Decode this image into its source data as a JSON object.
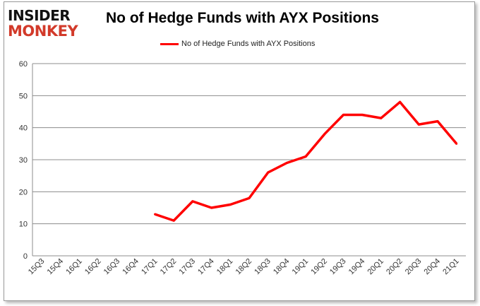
{
  "logo": {
    "line1": "INSIDER",
    "line2": "MONKEY"
  },
  "chart_data": {
    "type": "line",
    "title": "No of Hedge Funds with AYX Positions",
    "xlabel": "",
    "ylabel": "",
    "ylim": [
      0,
      60
    ],
    "yticks": [
      0,
      10,
      20,
      30,
      40,
      50,
      60
    ],
    "grid": true,
    "legend_position": "top",
    "categories": [
      "15Q3",
      "15Q4",
      "16Q1",
      "16Q2",
      "16Q3",
      "16Q4",
      "17Q1",
      "17Q2",
      "17Q3",
      "17Q4",
      "18Q1",
      "18Q2",
      "18Q3",
      "18Q4",
      "19Q1",
      "19Q2",
      "19Q3",
      "19Q4",
      "20Q1",
      "20Q2",
      "20Q3",
      "20Q4",
      "21Q1"
    ],
    "series": [
      {
        "name": "No of Hedge Funds with AYX Positions",
        "color": "#ff0000",
        "values": [
          null,
          null,
          null,
          null,
          null,
          null,
          13,
          11,
          17,
          15,
          16,
          18,
          26,
          29,
          31,
          38,
          44,
          44,
          43,
          48,
          41,
          42,
          35
        ]
      }
    ]
  }
}
